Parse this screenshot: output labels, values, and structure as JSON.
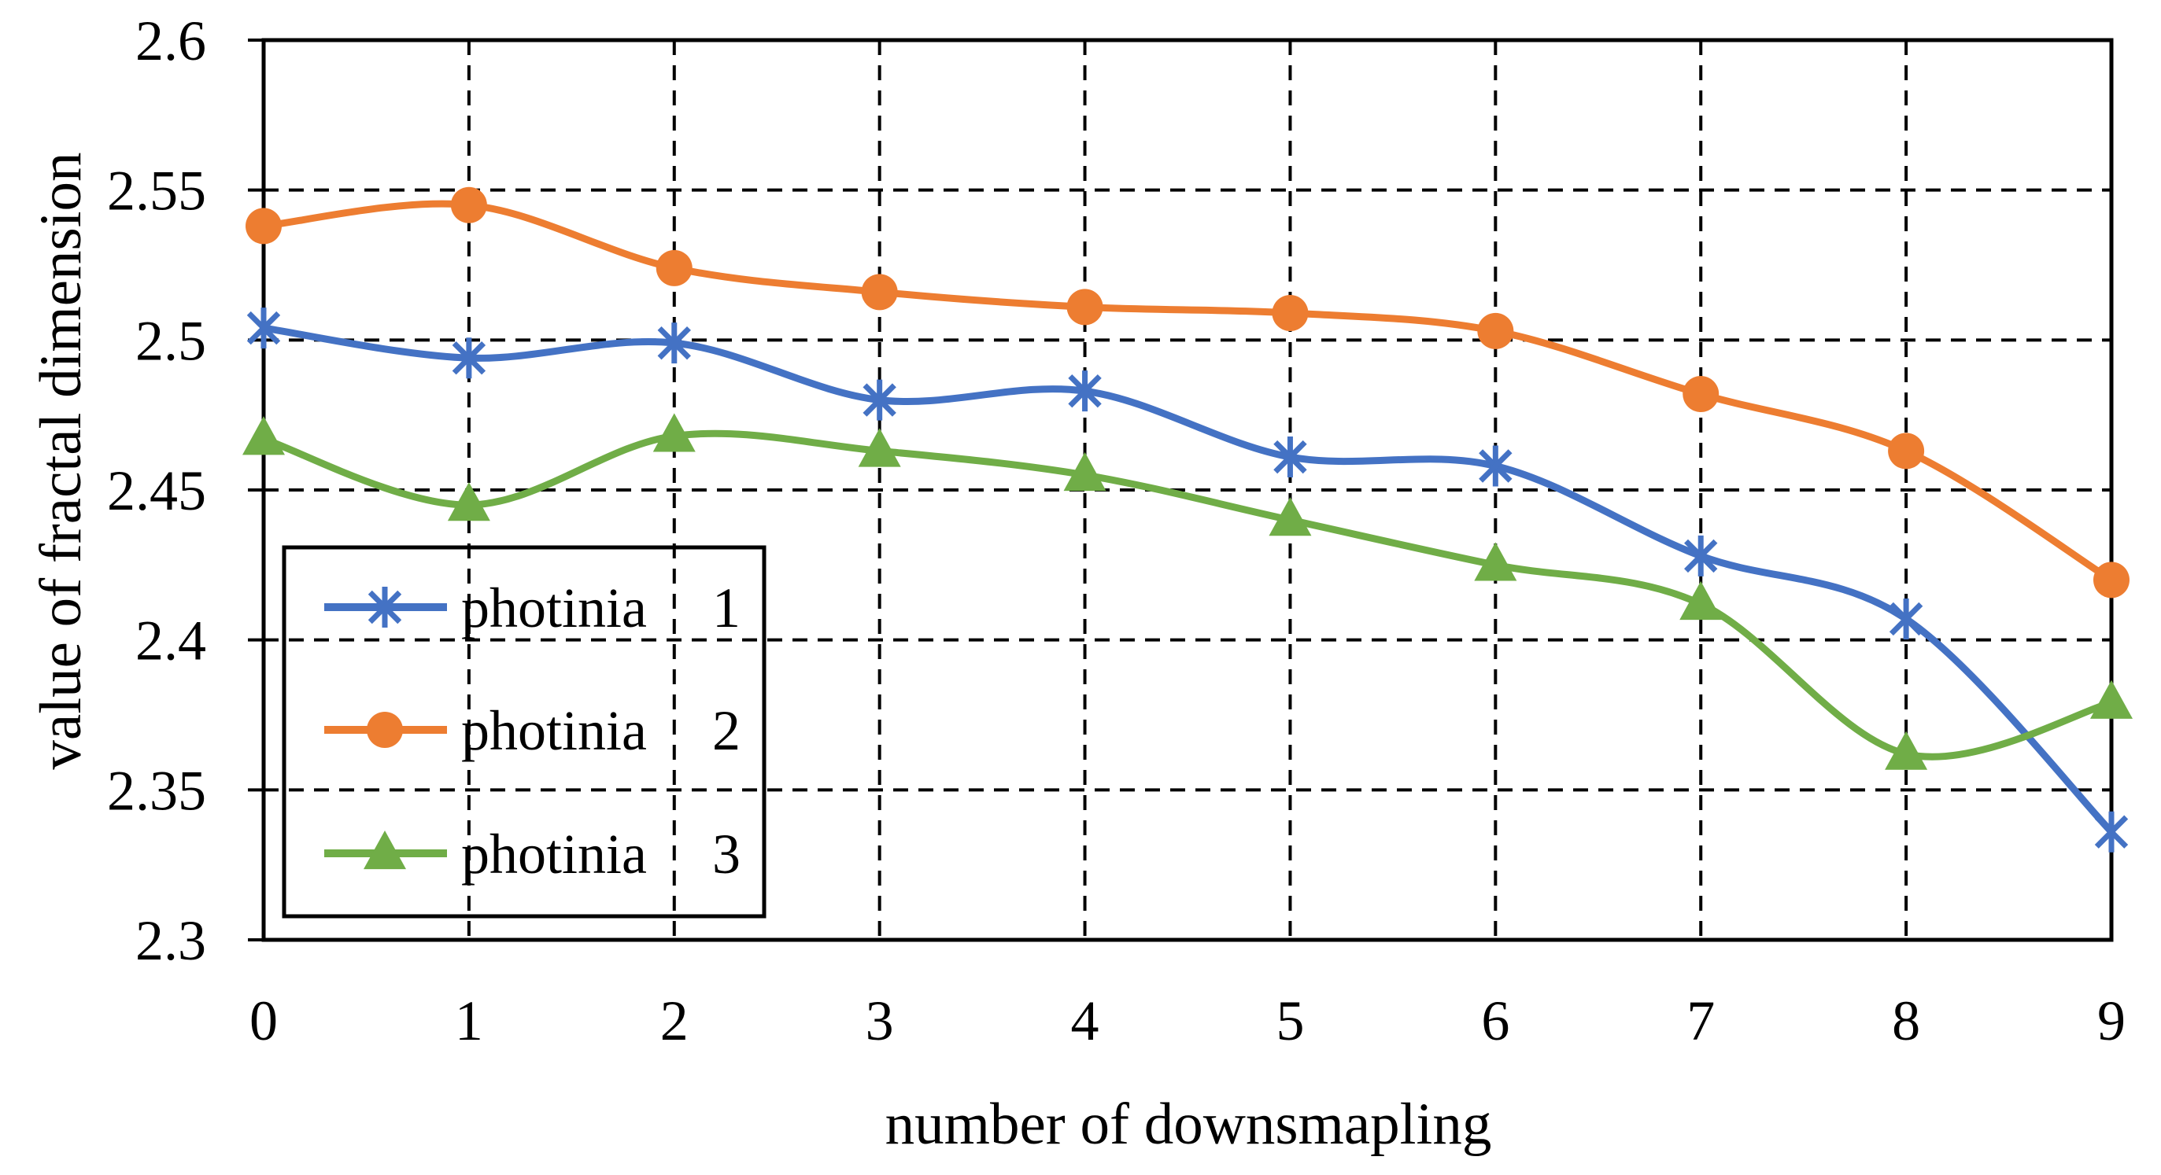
{
  "figure": {
    "y_axis": {
      "title": "value of fractal dimension",
      "tick_labels": [
        "2.6",
        "2.55",
        "2.5",
        "2.45",
        "2.4",
        "2.35",
        "2.3"
      ],
      "min": 2.3,
      "max": 2.6,
      "step": 0.05
    },
    "x_axis": {
      "title": "number of downsmapling",
      "tick_labels": [
        "0",
        "1",
        "2",
        "3",
        "4",
        "5",
        "6",
        "7",
        "8",
        "9"
      ]
    },
    "legend": {
      "items": [
        {
          "label": "photinia 1",
          "color": "#4472C4",
          "marker": "asterisk"
        },
        {
          "label": "photinia 2",
          "color": "#ED7D31",
          "marker": "circle"
        },
        {
          "label": "photinia 3",
          "color": "#70AD47",
          "marker": "triangle"
        }
      ]
    },
    "style_colors": {
      "grid": "#000000",
      "border": "#000000",
      "background": "#FFFFFF",
      "series_blue": "#4472C4",
      "series_orange": "#ED7D31",
      "series_green": "#70AD47"
    }
  },
  "chart_data": {
    "type": "line",
    "title": "",
    "xlabel": "number of downsmapling",
    "ylabel": "value of fractal dimension",
    "x": [
      0,
      1,
      2,
      3,
      4,
      5,
      6,
      7,
      8,
      9
    ],
    "series": [
      {
        "name": "photinia 1",
        "color": "#4472C4",
        "marker": "asterisk",
        "values": [
          2.504,
          2.494,
          2.499,
          2.48,
          2.483,
          2.461,
          2.458,
          2.428,
          2.407,
          2.336
        ]
      },
      {
        "name": "photinia 2",
        "color": "#ED7D31",
        "marker": "circle",
        "values": [
          2.538,
          2.545,
          2.524,
          2.516,
          2.511,
          2.509,
          2.503,
          2.482,
          2.463,
          2.42
        ]
      },
      {
        "name": "photinia 3",
        "color": "#70AD47",
        "marker": "triangle",
        "values": [
          2.467,
          2.445,
          2.468,
          2.463,
          2.455,
          2.44,
          2.425,
          2.412,
          2.362,
          2.379
        ]
      }
    ],
    "ylim": [
      2.3,
      2.6
    ],
    "xlim": [
      0,
      9
    ],
    "grid": "dashed-major-both",
    "legend_position": "lower-left",
    "smooth_lines": true
  }
}
